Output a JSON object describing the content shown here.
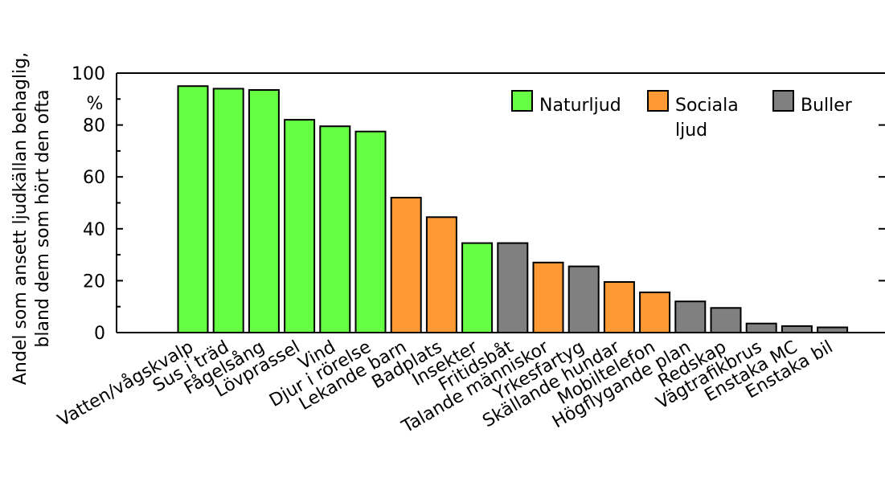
{
  "chart_data": {
    "type": "bar",
    "title": "",
    "ylabel_lines": [
      "Andel som ansett ljudkällan behaglig,",
      "bland dem som hört den ofta"
    ],
    "y_unit": "%",
    "xlabel": "",
    "ylim": [
      0,
      100
    ],
    "yticks": [
      0,
      20,
      40,
      60,
      80,
      100
    ],
    "grid": false,
    "legend_position": "top-right",
    "categories": [
      "Vatten/vågskvalp",
      "Sus i träd",
      "Fågelsång",
      "Lövprassel",
      "Vind",
      "Djur i rörelse",
      "Lekande barn",
      "Badplats",
      "Insekter",
      "Fritidsbåt",
      "Talande människor",
      "Yrkesfartyg",
      "Skällande hundar",
      "Mobiltelefon",
      "Högflygande plan",
      "Redskap",
      "Vägtrafikbrus",
      "Enstaka MC",
      "Enstaka bil"
    ],
    "values": [
      95,
      94,
      93.5,
      82,
      79.5,
      77.5,
      52,
      44.5,
      34.5,
      34.5,
      27,
      25.5,
      19.5,
      15.5,
      12,
      9.5,
      3.5,
      2.5,
      2
    ],
    "groups": [
      "Naturljud",
      "Naturljud",
      "Naturljud",
      "Naturljud",
      "Naturljud",
      "Naturljud",
      "Sociala ljud",
      "Sociala ljud",
      "Naturljud",
      "Buller",
      "Sociala ljud",
      "Buller",
      "Sociala ljud",
      "Sociala ljud",
      "Buller",
      "Buller",
      "Buller",
      "Buller",
      "Buller"
    ],
    "legend": [
      {
        "name": "Naturljud",
        "lines": [
          "Naturljud"
        ],
        "color": "#66ff44"
      },
      {
        "name": "Sociala ljud",
        "lines": [
          "Sociala",
          "ljud"
        ],
        "color": "#ff9933"
      },
      {
        "name": "Buller",
        "lines": [
          "Buller"
        ],
        "color": "#808080"
      }
    ]
  }
}
